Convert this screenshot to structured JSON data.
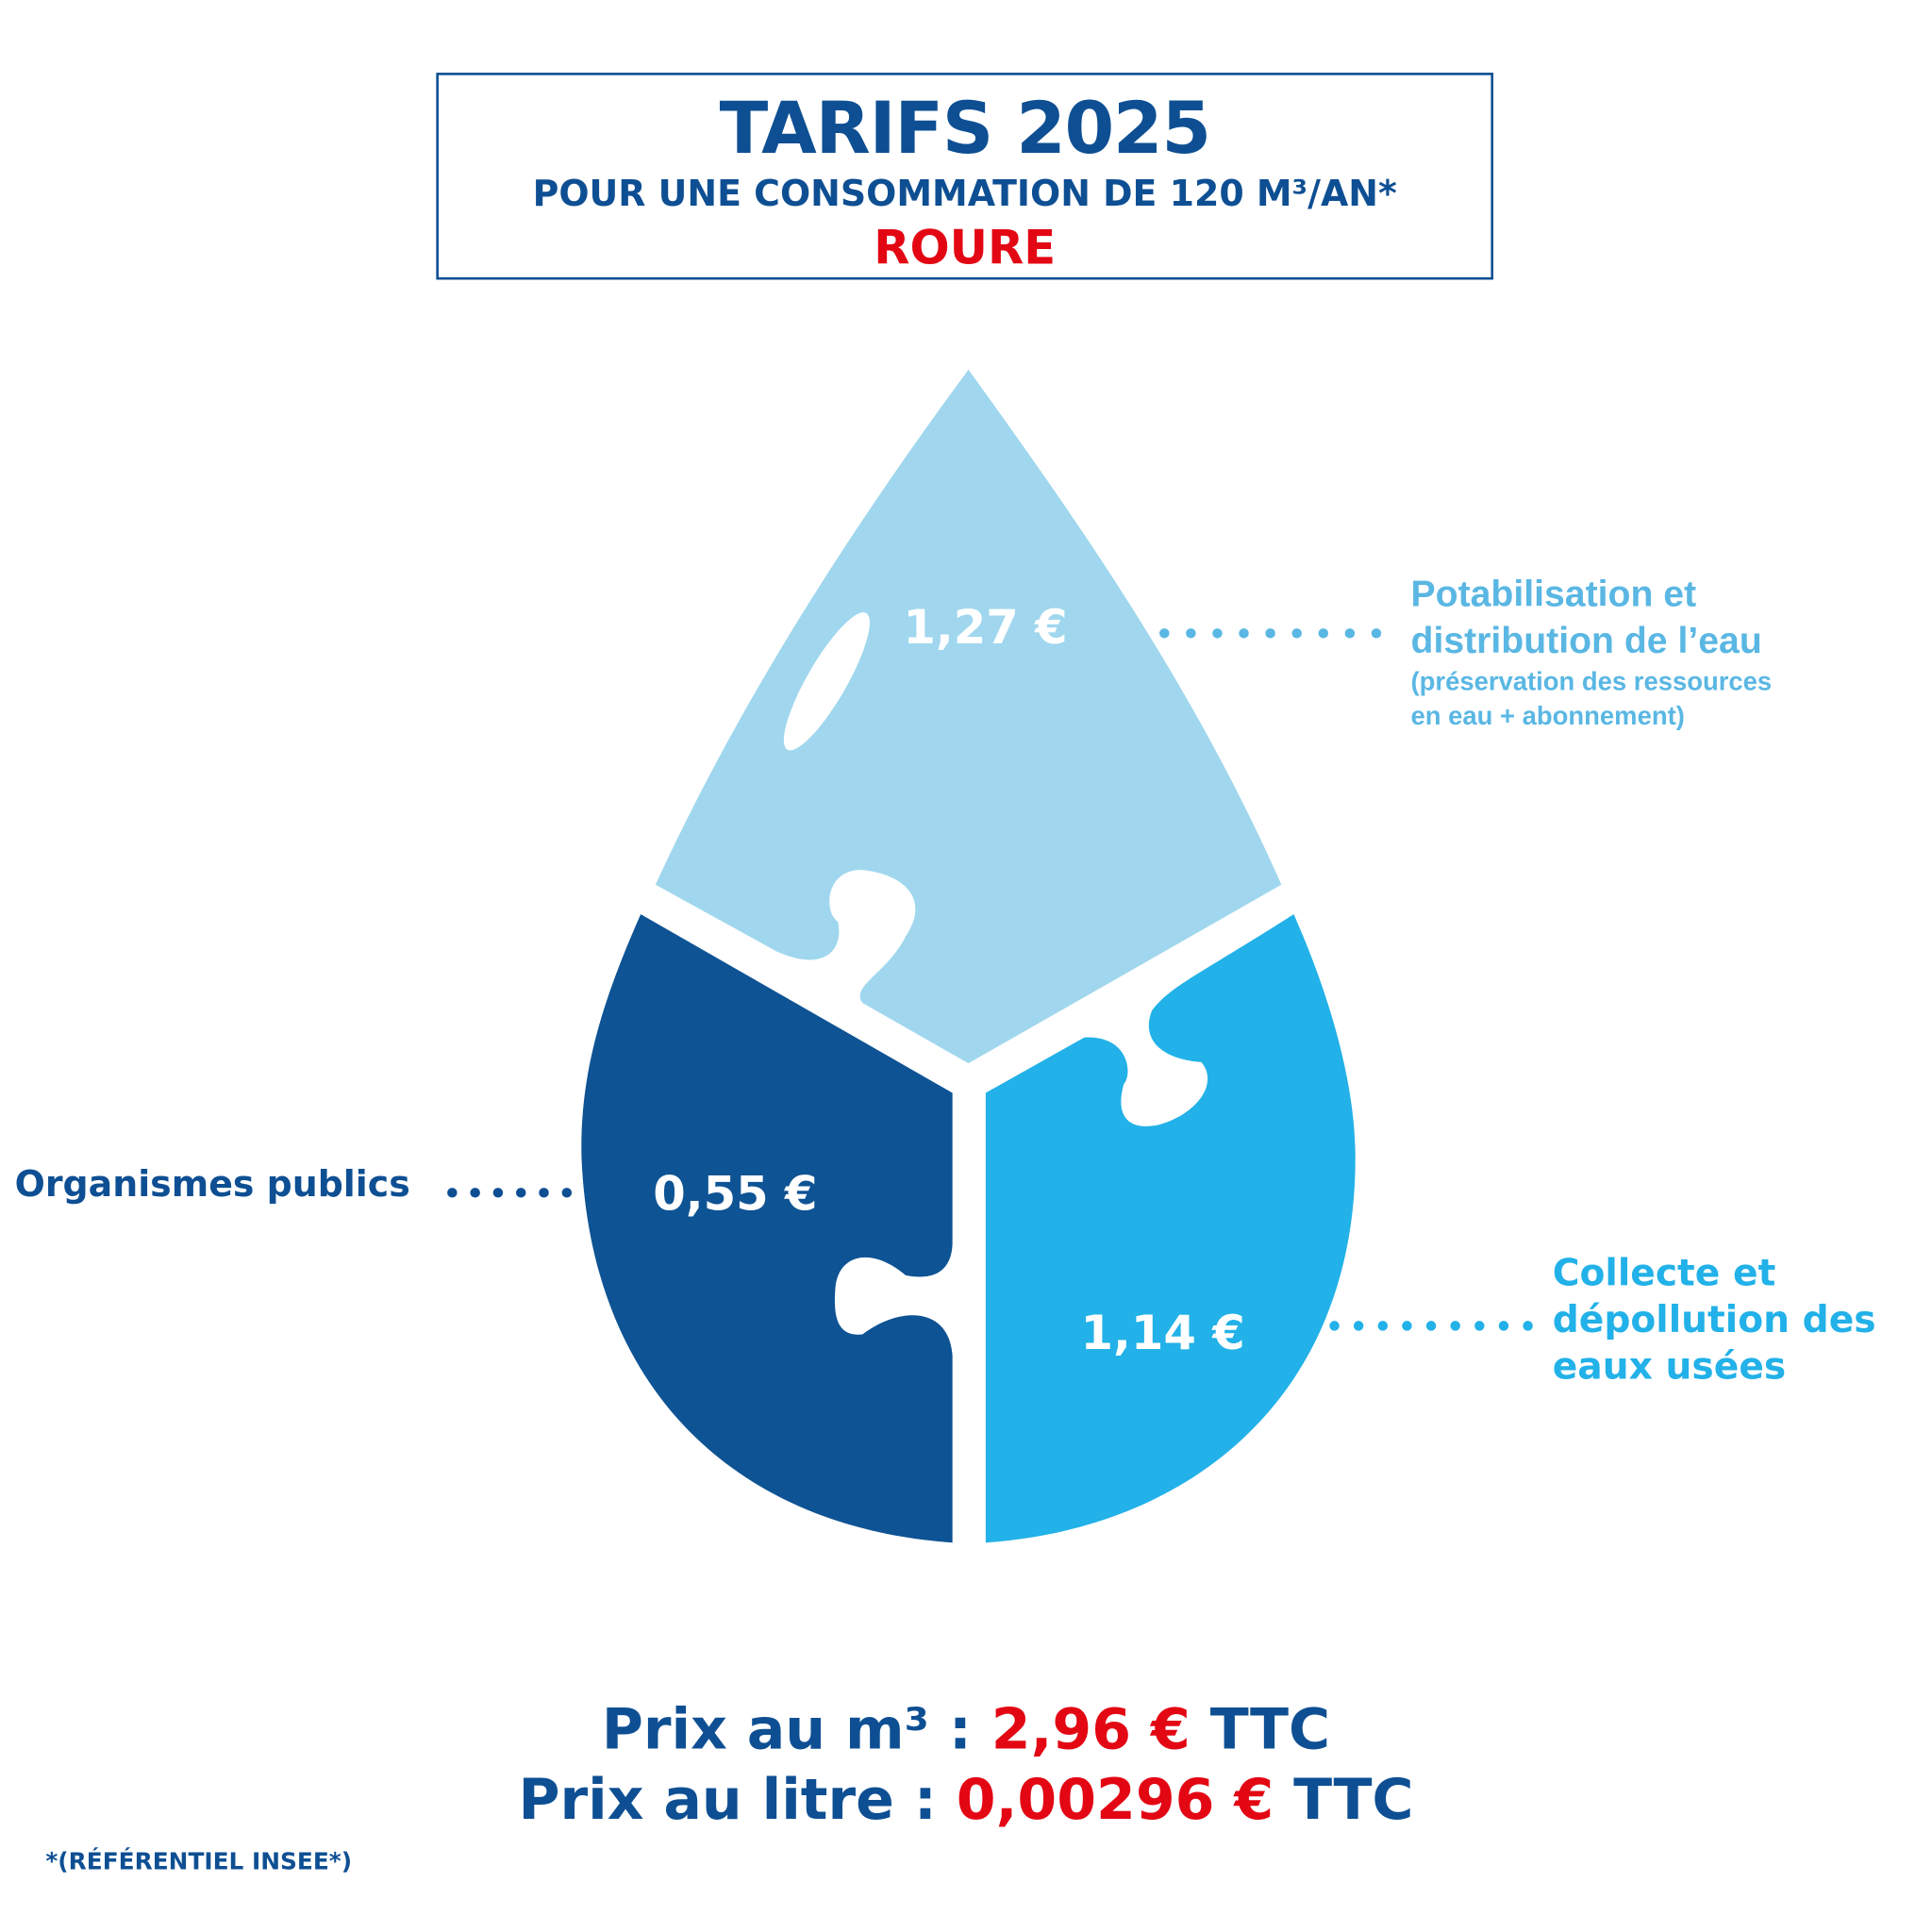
{
  "header": {
    "title": "TARIFS 2025",
    "subtitle": "POUR UNE CONSOMMATION DE 120 M³/AN*",
    "city": "ROURE"
  },
  "segments": [
    {
      "value": "1,27 €",
      "label": "Potabilisation et",
      "label2": "distribution de l’eau",
      "note": "(préservation des ressources",
      "note2": "en eau + abonnement)",
      "color": "#a0d7ee",
      "label_color": "#5ab7e3"
    },
    {
      "value": "0,55 €",
      "label": "Organismes publics",
      "color": "#0e5394",
      "label_color": "#0e4f93"
    },
    {
      "value": "1,14 €",
      "label": "Collecte et",
      "label2": "dépollution des",
      "label3": "eaux usées",
      "color": "#22b1e8",
      "label_color": "#22b1e8"
    }
  ],
  "prices": {
    "m3_label": "Prix au m³ : ",
    "m3_value": "2,96 €",
    "m3_suffix": " TTC",
    "litre_label": "Prix au litre : ",
    "litre_value": "0,00296 €",
    "litre_suffix": " TTC"
  },
  "footnote": "*(RÉFÉRENTIEL INSEE*)"
}
